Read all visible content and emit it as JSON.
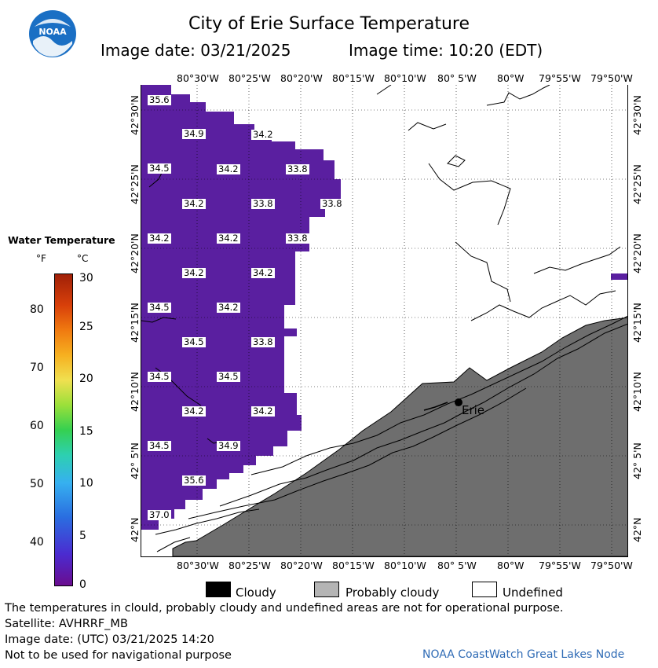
{
  "title": "City of Erie Surface Temperature",
  "image_date_label": "Image date: 03/21/2025",
  "image_time_label": "Image time: 10:20 (EDT)",
  "logo": {
    "text": "NOAA",
    "color": "#1a6fc4"
  },
  "map": {
    "top_lon_labels": [
      "80°30'W",
      "80°25'W",
      "80°20'W",
      "80°15'W",
      "80°10'W",
      "80° 5'W",
      "80°W",
      "79°55'W",
      "79°50'W"
    ],
    "bottom_lon_labels": [
      "80°30'W",
      "80°25'W",
      "80°20'W",
      "80°15'W",
      "80°10'W",
      "80° 5'W",
      "80°W",
      "79°55'W",
      "79°50'W"
    ],
    "left_lat_labels": [
      "42°30'N",
      "42°25'N",
      "42°20'N",
      "42°15'N",
      "42°10'N",
      "42° 5'N",
      "42°N"
    ],
    "right_lat_labels": [
      "42°30'N",
      "42°25'N",
      "42°20'N",
      "42°15'N",
      "42°10'N",
      "42° 5'N",
      "42°N"
    ],
    "city_label": "Erie",
    "water_color": "#5a1fa0",
    "land_color": "#6e6e6e",
    "temperature_labels": [
      "35.6",
      "34.9",
      "34.2",
      "34.5",
      "34.2",
      "33.8",
      "34.2",
      "33.8",
      "33.8",
      "34.2",
      "34.2",
      "33.8",
      "34.2",
      "34.2",
      "34.5",
      "34.2",
      "34.5",
      "33.8",
      "34.5",
      "34.5",
      "34.2",
      "34.2",
      "34.5",
      "34.9",
      "35.6",
      "37.0"
    ]
  },
  "legend": {
    "title": "Water Temperature",
    "unit_f": "°F",
    "unit_c": "°C",
    "f_ticks": [
      "80",
      "70",
      "60",
      "50",
      "40"
    ],
    "c_ticks": [
      "30",
      "25",
      "20",
      "15",
      "10",
      "5",
      "0"
    ]
  },
  "key": {
    "cloudy": "Cloudy",
    "probably_cloudy": "Probably cloudy",
    "undefined": "Undefined",
    "cloudy_color": "#000000",
    "probably_cloudy_color": "#b4b4b4",
    "undefined_color": "#ffffff"
  },
  "footer": {
    "line1": "The temperatures in clould, probably cloudy and undefined areas are not for operational purpose.",
    "line2": "Satellite: AVHRRF_MB",
    "line3": "Image date: (UTC) 03/21/2025  14:20",
    "line4": "Not to be used for navigational purpose",
    "credit": "NOAA CoastWatch Great Lakes Node"
  }
}
